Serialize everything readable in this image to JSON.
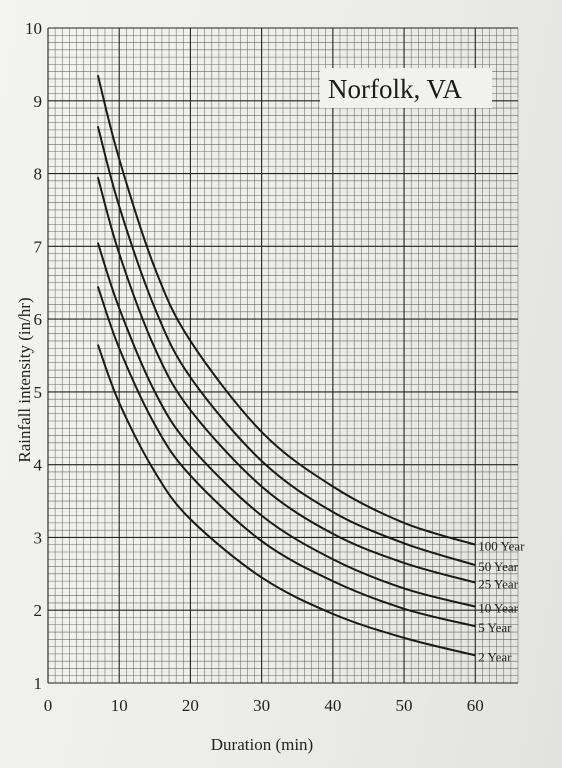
{
  "chart_data": {
    "type": "line",
    "title": "Norfolk, VA",
    "xlabel": "Duration (min)",
    "ylabel": "Rainfall intensity (in/hr)",
    "xlim": [
      0,
      66
    ],
    "ylim": [
      1,
      10
    ],
    "x_ticks": [
      "0",
      "10",
      "20",
      "30",
      "40",
      "50",
      "60"
    ],
    "y_ticks": [
      "1",
      "2",
      "3",
      "4",
      "5",
      "6",
      "7",
      "8",
      "9",
      "10"
    ],
    "grid": true,
    "series": [
      {
        "name": "2 Year",
        "x": [
          7,
          10,
          15,
          20,
          30,
          40,
          50,
          60
        ],
        "values": [
          5.65,
          4.85,
          3.9,
          3.25,
          2.45,
          1.95,
          1.62,
          1.38
        ]
      },
      {
        "name": "5 Year",
        "x": [
          7,
          10,
          15,
          20,
          30,
          40,
          50,
          60
        ],
        "values": [
          6.45,
          5.6,
          4.55,
          3.85,
          2.95,
          2.4,
          2.02,
          1.78
        ]
      },
      {
        "name": "10 Year",
        "x": [
          7,
          10,
          15,
          20,
          30,
          40,
          50,
          60
        ],
        "values": [
          7.05,
          6.15,
          5.0,
          4.25,
          3.3,
          2.7,
          2.3,
          2.05
        ]
      },
      {
        "name": "25 Year",
        "x": [
          7,
          10,
          15,
          20,
          30,
          40,
          50,
          60
        ],
        "values": [
          7.95,
          6.9,
          5.6,
          4.75,
          3.7,
          3.05,
          2.65,
          2.38
        ]
      },
      {
        "name": "50 Year",
        "x": [
          7,
          10,
          15,
          20,
          30,
          40,
          50,
          60
        ],
        "values": [
          8.65,
          7.55,
          6.15,
          5.2,
          4.05,
          3.35,
          2.92,
          2.62
        ]
      },
      {
        "name": "100 Year",
        "x": [
          7,
          10,
          15,
          20,
          30,
          40,
          50,
          60
        ],
        "values": [
          9.35,
          8.2,
          6.7,
          5.7,
          4.45,
          3.7,
          3.2,
          2.9
        ]
      }
    ]
  }
}
